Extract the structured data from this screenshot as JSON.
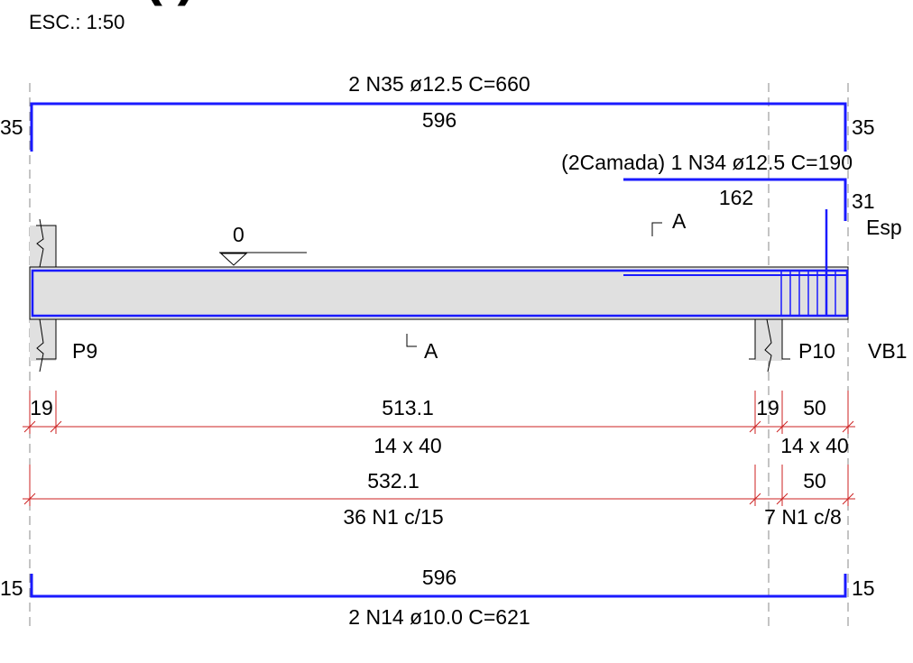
{
  "drawing": {
    "title_fragment": "(  )",
    "scale": "ESC.: 1:50",
    "top_bar": {
      "label": "2 N35 ø12.5  C=660",
      "length": "596",
      "hook_left": "35",
      "hook_right": "35"
    },
    "second_layer_bar": {
      "label": "(2Camada) 1 N34 ø12.5  C=190",
      "length": "162",
      "hook_right": "31",
      "extra": "Esp"
    },
    "level_mark": "0",
    "section_top": "A",
    "section_bottom": "A",
    "supports": {
      "left": "P9",
      "right": "P10",
      "far_right": "VB1"
    },
    "dim_row1": {
      "left": "19",
      "span": "513.1",
      "mid": "19",
      "right": "50"
    },
    "section_labels": {
      "main": "14 x 40",
      "right": "14 x 40"
    },
    "dim_row2": {
      "span": "532.1",
      "right": "50"
    },
    "stirrups": {
      "main": "36 N1 c/15",
      "right": "7 N1 c/8"
    },
    "bottom_bar": {
      "length": "596",
      "label": "2 N14 ø10.0  C=621",
      "hook_left": "15",
      "hook_right": "15"
    },
    "colors": {
      "rebar": "#1a1aff",
      "dimension": "#cc2222",
      "beam_fill": "#e0e0e0",
      "outline": "#000000"
    }
  }
}
